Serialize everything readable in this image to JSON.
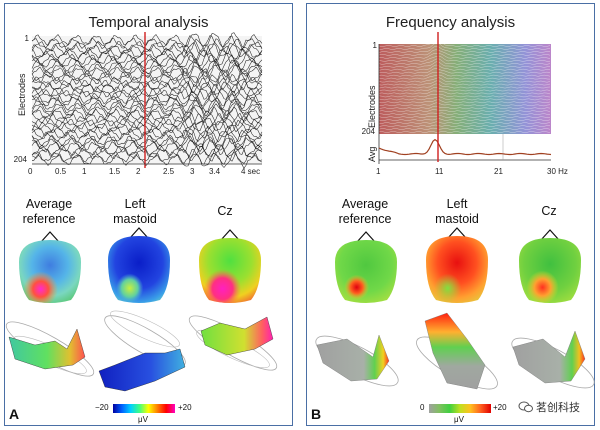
{
  "panels": {
    "a": {
      "title": "Temporal analysis",
      "label": "A",
      "ylabel": "Electrodes",
      "ytick_top": "1",
      "ytick_bottom": "204",
      "xticks": [
        "0",
        "0.5",
        "1",
        "1.5",
        "2",
        "2.5",
        "3",
        "3.4",
        "4 sec"
      ],
      "maps": [
        {
          "label_line1": "Average",
          "label_line2": "reference"
        },
        {
          "label_line1": "Left",
          "label_line2": "mastoid"
        },
        {
          "label_line1": "Cz",
          "label_line2": ""
        }
      ],
      "colorbar": {
        "min": "−20",
        "max": "+20",
        "unit": "μV"
      }
    },
    "b": {
      "title": "Frequency analysis",
      "label": "B",
      "ylabel": "Electrodes",
      "ytick_top": "1",
      "ytick_bottom": "204",
      "avg_label": "Avg",
      "xticks": [
        "1",
        "11",
        "21",
        "30 Hz"
      ],
      "maps": [
        {
          "label_line1": "Average",
          "label_line2": "reference"
        },
        {
          "label_line1": "Left",
          "label_line2": "mastoid"
        },
        {
          "label_line1": "Cz",
          "label_line2": ""
        }
      ],
      "colorbar": {
        "min": "0",
        "max": "+20",
        "unit": "μV"
      }
    }
  },
  "watermark": "茗创科技",
  "colors": {
    "border": "#4a6fa5",
    "marker": "#d02020"
  }
}
